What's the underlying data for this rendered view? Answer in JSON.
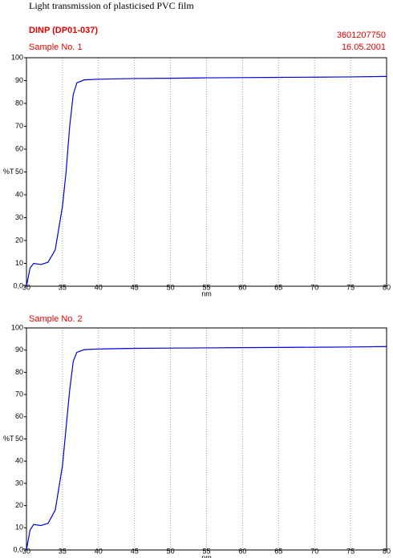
{
  "header": {
    "title": "Light transmission of plasticised PVC film",
    "product": "DINP (DP01-037)",
    "code": "3601207750",
    "date": "16.05.2001"
  },
  "chart_data": [
    {
      "type": "line",
      "subtitle": "Sample No. 1",
      "x_label": "nm",
      "y_label": "%T",
      "xlim": [
        30,
        80
      ],
      "ylim": [
        0,
        100
      ],
      "xticks": [
        30,
        35,
        40,
        45,
        50,
        55,
        60,
        65,
        70,
        75,
        80
      ],
      "yticks": [
        {
          "value": 0,
          "label": "0,0"
        },
        10,
        20,
        30,
        40,
        50,
        60,
        70,
        80,
        90,
        100
      ],
      "grid": true,
      "x": [
        30,
        30.5,
        31,
        32,
        33,
        34,
        35,
        35.5,
        36,
        36.5,
        37,
        38,
        40,
        45,
        50,
        55,
        60,
        65,
        70,
        75,
        80
      ],
      "series": [
        {
          "color": "#0000e0",
          "values": [
            0,
            8,
            10,
            9.5,
            10.5,
            16,
            35,
            50,
            70,
            84,
            89,
            90.3,
            90.6,
            90.9,
            91,
            91.2,
            91.3,
            91.4,
            91.5,
            91.6,
            91.8
          ]
        }
      ]
    },
    {
      "type": "line",
      "subtitle": "Sample No. 2",
      "x_label": "nm",
      "y_label": "%T",
      "xlim": [
        30,
        80
      ],
      "ylim": [
        0,
        100
      ],
      "xticks": [
        30,
        35,
        40,
        45,
        50,
        55,
        60,
        65,
        70,
        75,
        80
      ],
      "yticks": [
        {
          "value": 0,
          "label": "0,0"
        },
        10,
        20,
        30,
        40,
        50,
        60,
        70,
        80,
        90,
        100
      ],
      "grid": true,
      "x": [
        30,
        30.5,
        31,
        32,
        33,
        34,
        35,
        35.5,
        36,
        36.5,
        37,
        38,
        40,
        45,
        50,
        55,
        60,
        65,
        70,
        75,
        80
      ],
      "series": [
        {
          "color": "#0000e0",
          "values": [
            0,
            9,
            11.5,
            11,
            12,
            18,
            38,
            55,
            72,
            85,
            89,
            90.2,
            90.5,
            90.8,
            90.9,
            91,
            91.1,
            91.2,
            91.3,
            91.4,
            91.6
          ]
        }
      ]
    }
  ]
}
